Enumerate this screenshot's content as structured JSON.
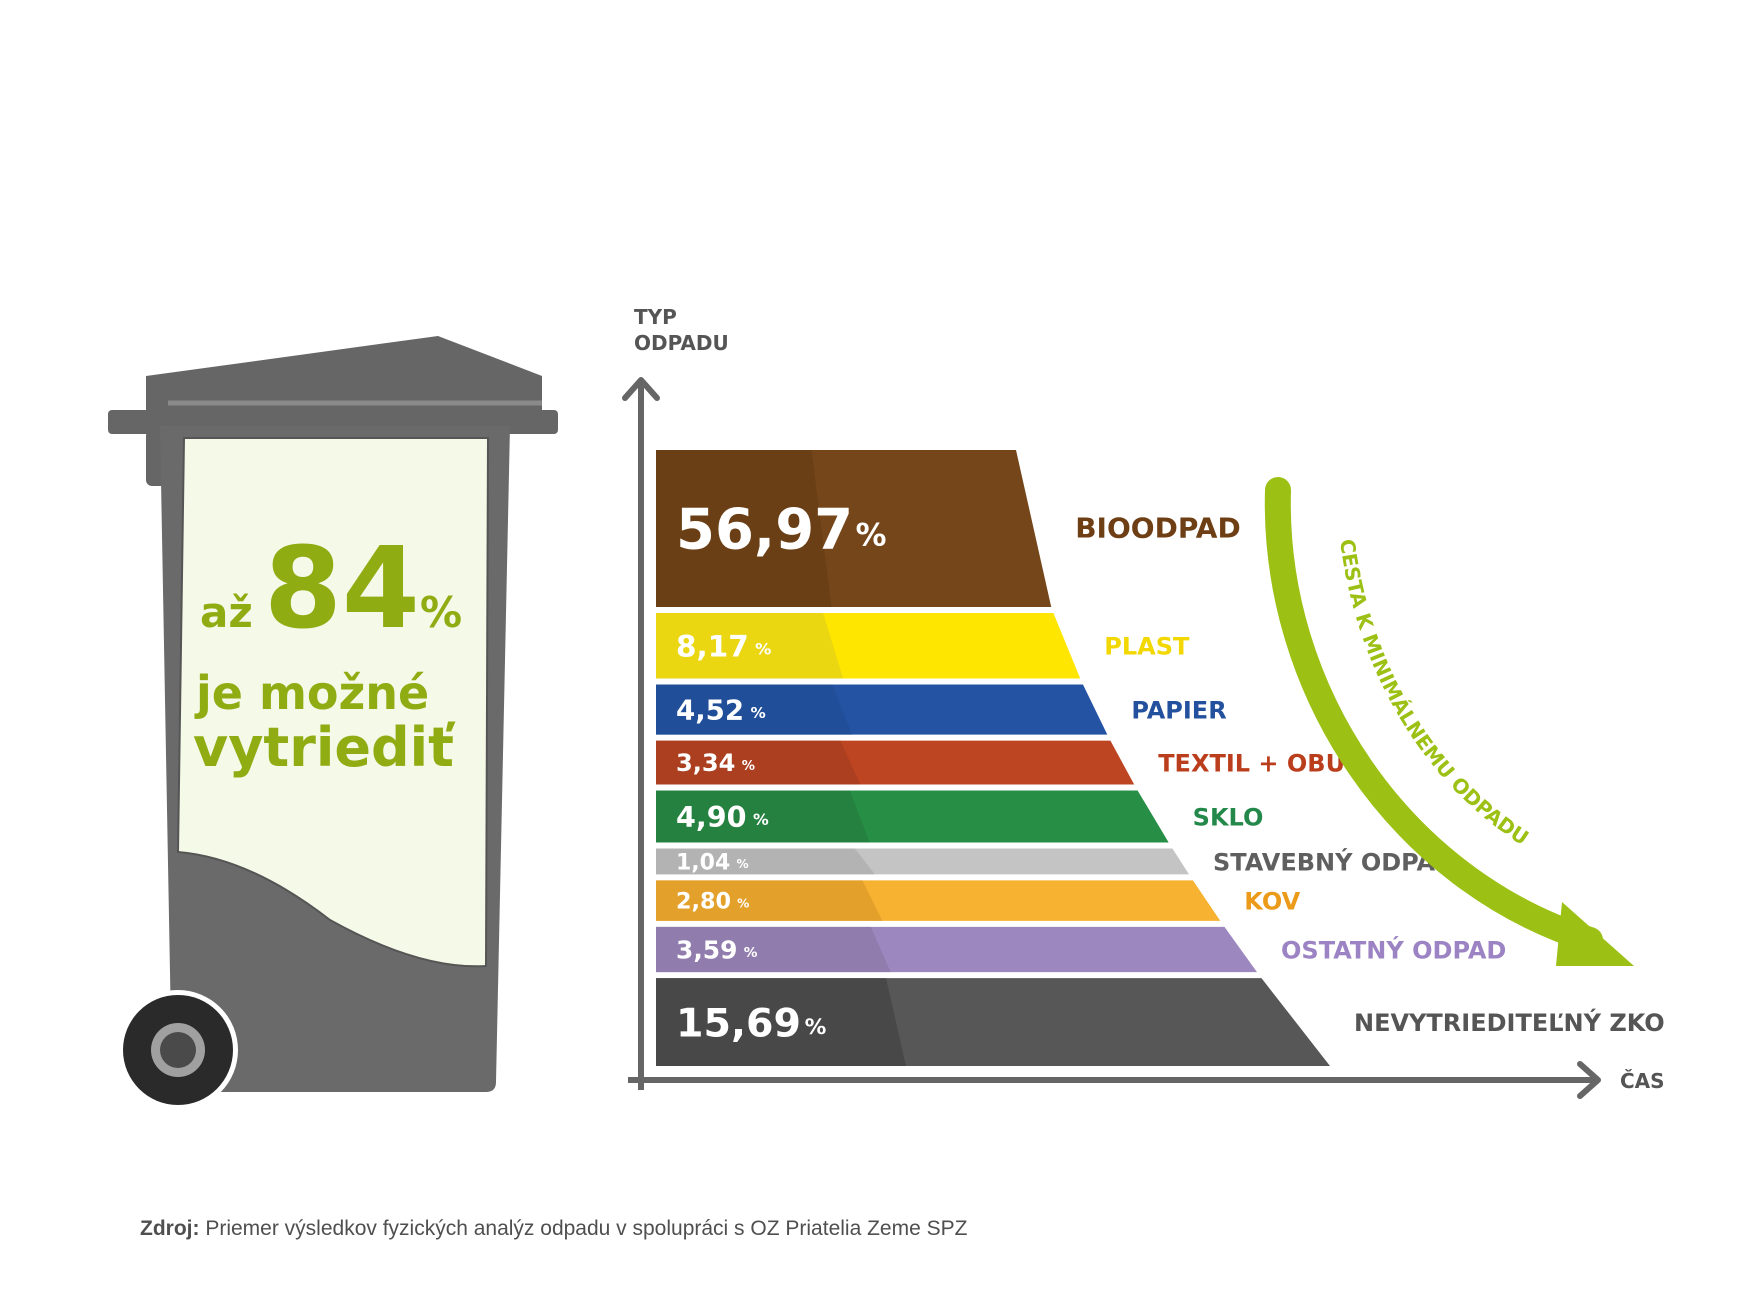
{
  "bin": {
    "prefix": "až",
    "number": "84",
    "unit": "%",
    "line1": "je možné",
    "line2": "vytriediť",
    "color_text": "#8fac13",
    "color_body": "#6a6a6a",
    "color_panel": "#f5f9e8"
  },
  "arrow_label": "CESTA K MINIMÁLNEMU ODPADU",
  "arrow_color": "#9cc014",
  "source": {
    "label": "Zdroj:",
    "text": "Priemer výsledkov fyzických analýz odpadu v spolupráci s OZ Priatelia Zeme SPZ"
  },
  "chart_data": {
    "type": "bar",
    "xlabel": "ČAS",
    "ylabel_line1": "TYP",
    "ylabel_line2": "ODPADU",
    "categories": [
      "BIOODPAD",
      "PLAST",
      "PAPIER",
      "TEXTIL + OBUV",
      "SKLO",
      "STAVEBNÝ ODPAD",
      "KOV",
      "OSTATNÝ ODPAD",
      "NEVYTRIEDITEĽNÝ ZKO"
    ],
    "values": [
      56.97,
      8.17,
      4.52,
      3.34,
      4.9,
      1.04,
      2.8,
      3.59,
      15.69
    ],
    "value_labels": [
      "56,97",
      "8,17",
      "4,52",
      "3,34",
      "4,90",
      "1,04",
      "2,80",
      "3,59",
      "15,69"
    ],
    "unit": "%",
    "colors": [
      "#75461a",
      "#ffe600",
      "#2553a4",
      "#bd4522",
      "#278f45",
      "#c4c4c4",
      "#f6b230",
      "#9d87bf",
      "#575757"
    ],
    "label_colors": [
      "#6e3e14",
      "#f2d800",
      "#24519e",
      "#bb3e1c",
      "#24884a",
      "#5f5f5f",
      "#ec9a1a",
      "#9b83c4",
      "#555555"
    ],
    "shade_colors": [
      "#633a13",
      "#d9c91f",
      "#1f4a8f",
      "#9d3a1f",
      "#22763c",
      "#a6a6a6",
      "#d4942a",
      "#86749f",
      "#3c3c3c"
    ],
    "legend": "right"
  }
}
